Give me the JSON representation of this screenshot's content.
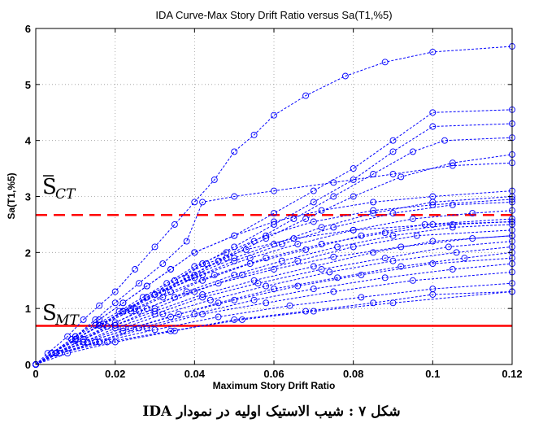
{
  "chart_data": {
    "type": "line",
    "title": "IDA Curve-Max Story Drift Ratio versus Sa(T1,%5)",
    "xlabel": "Maximum Story Drift Ratio",
    "ylabel": "Sa(T1,%5)",
    "xlim": [
      0,
      0.12
    ],
    "ylim": [
      0,
      6
    ],
    "xticks": [
      "0",
      "0.02",
      "0.04",
      "0.06",
      "0.08",
      "0.1",
      "0.12"
    ],
    "yticks": [
      "0",
      "1",
      "2",
      "3",
      "4",
      "5",
      "6"
    ],
    "grid": true,
    "series_color": "#0000ff",
    "series": [
      {
        "x": [
          0,
          0.003,
          0.008,
          0.012,
          0.016,
          0.02,
          0.025,
          0.03,
          0.035,
          0.04,
          0.045,
          0.05,
          0.055,
          0.06,
          0.068,
          0.078,
          0.088,
          0.1,
          0.12
        ],
        "y": [
          0,
          0.2,
          0.5,
          0.8,
          1.05,
          1.3,
          1.7,
          2.1,
          2.5,
          2.9,
          3.3,
          3.8,
          4.1,
          4.45,
          4.8,
          5.15,
          5.4,
          5.58,
          5.68
        ]
      },
      {
        "x": [
          0,
          0.004,
          0.01,
          0.016,
          0.022,
          0.028,
          0.034,
          0.04,
          0.05,
          0.06,
          0.07,
          0.08,
          0.09,
          0.1,
          0.12
        ],
        "y": [
          0,
          0.2,
          0.5,
          0.8,
          1.1,
          1.4,
          1.7,
          2.0,
          2.3,
          2.7,
          3.1,
          3.5,
          4.0,
          4.5,
          4.55
        ]
      },
      {
        "x": [
          0,
          0.004,
          0.01,
          0.016,
          0.022,
          0.028,
          0.035,
          0.042,
          0.05,
          0.06,
          0.07,
          0.08,
          0.09,
          0.1,
          0.12
        ],
        "y": [
          0,
          0.2,
          0.45,
          0.7,
          0.95,
          1.2,
          1.5,
          1.8,
          2.1,
          2.5,
          2.9,
          3.3,
          3.8,
          4.25,
          4.3
        ]
      },
      {
        "x": [
          0,
          0.004,
          0.01,
          0.016,
          0.022,
          0.03,
          0.038,
          0.046,
          0.055,
          0.065,
          0.075,
          0.085,
          0.095,
          0.103,
          0.12
        ],
        "y": [
          0,
          0.2,
          0.45,
          0.7,
          0.95,
          1.25,
          1.55,
          1.85,
          2.2,
          2.6,
          3.0,
          3.4,
          3.8,
          4.0,
          4.05
        ]
      },
      {
        "x": [
          0,
          0.004,
          0.01,
          0.015,
          0.02,
          0.026,
          0.032,
          0.038,
          0.042,
          0.05,
          0.06,
          0.075,
          0.09,
          0.105,
          0.12
        ],
        "y": [
          0,
          0.2,
          0.5,
          0.8,
          1.1,
          1.45,
          1.8,
          2.2,
          2.9,
          3.0,
          3.1,
          3.25,
          3.4,
          3.55,
          3.6
        ]
      },
      {
        "x": [
          0,
          0.004,
          0.01,
          0.016,
          0.022,
          0.03,
          0.038,
          0.048,
          0.058,
          0.068,
          0.08,
          0.092,
          0.105,
          0.12
        ],
        "y": [
          0,
          0.2,
          0.45,
          0.7,
          0.95,
          1.25,
          1.55,
          1.9,
          2.25,
          2.6,
          3.0,
          3.35,
          3.6,
          3.75
        ]
      },
      {
        "x": [
          0,
          0.004,
          0.01,
          0.016,
          0.022,
          0.028,
          0.034,
          0.04,
          0.05,
          0.06,
          0.072,
          0.085,
          0.1,
          0.12
        ],
        "y": [
          0,
          0.2,
          0.5,
          0.8,
          1.1,
          1.4,
          1.7,
          2.0,
          2.3,
          2.55,
          2.75,
          2.9,
          3.0,
          3.1
        ]
      },
      {
        "x": [
          0,
          0.004,
          0.01,
          0.016,
          0.022,
          0.03,
          0.04,
          0.05,
          0.06,
          0.072,
          0.085,
          0.1,
          0.12
        ],
        "y": [
          0,
          0.2,
          0.45,
          0.7,
          0.95,
          1.25,
          1.6,
          1.9,
          2.15,
          2.45,
          2.7,
          2.9,
          3.0
        ]
      },
      {
        "x": [
          0,
          0.004,
          0.01,
          0.016,
          0.022,
          0.03,
          0.04,
          0.05,
          0.062,
          0.075,
          0.09,
          0.105,
          0.12
        ],
        "y": [
          0,
          0.2,
          0.45,
          0.7,
          0.95,
          1.25,
          1.55,
          1.85,
          2.15,
          2.45,
          2.7,
          2.85,
          2.9
        ]
      },
      {
        "x": [
          0,
          0.004,
          0.01,
          0.016,
          0.024,
          0.032,
          0.042,
          0.054,
          0.066,
          0.08,
          0.095,
          0.11,
          0.12
        ],
        "y": [
          0,
          0.2,
          0.45,
          0.7,
          1.0,
          1.3,
          1.6,
          1.9,
          2.15,
          2.4,
          2.6,
          2.7,
          2.75
        ]
      },
      {
        "x": [
          0,
          0.004,
          0.01,
          0.016,
          0.024,
          0.032,
          0.042,
          0.054,
          0.068,
          0.082,
          0.098,
          0.12
        ],
        "y": [
          0,
          0.2,
          0.45,
          0.7,
          0.95,
          1.2,
          1.5,
          1.8,
          2.05,
          2.3,
          2.5,
          2.6
        ]
      },
      {
        "x": [
          0,
          0.005,
          0.012,
          0.02,
          0.028,
          0.038,
          0.05,
          0.062,
          0.076,
          0.09,
          0.105,
          0.12
        ],
        "y": [
          0,
          0.2,
          0.45,
          0.75,
          1.0,
          1.3,
          1.6,
          1.85,
          2.1,
          2.3,
          2.45,
          2.5
        ]
      },
      {
        "x": [
          0,
          0.005,
          0.012,
          0.02,
          0.03,
          0.04,
          0.052,
          0.066,
          0.08,
          0.096,
          0.12
        ],
        "y": [
          0,
          0.2,
          0.45,
          0.7,
          1.0,
          1.3,
          1.6,
          1.85,
          2.1,
          2.3,
          2.4
        ]
      },
      {
        "x": [
          0,
          0.005,
          0.012,
          0.02,
          0.03,
          0.042,
          0.055,
          0.07,
          0.085,
          0.1,
          0.12
        ],
        "y": [
          0,
          0.2,
          0.45,
          0.7,
          0.95,
          1.25,
          1.5,
          1.75,
          2.0,
          2.2,
          2.3
        ]
      },
      {
        "x": [
          0,
          0.005,
          0.012,
          0.02,
          0.03,
          0.042,
          0.056,
          0.072,
          0.088,
          0.104,
          0.12
        ],
        "y": [
          0,
          0.2,
          0.4,
          0.65,
          0.9,
          1.2,
          1.45,
          1.7,
          1.9,
          2.1,
          2.2
        ]
      },
      {
        "x": [
          0,
          0.005,
          0.012,
          0.022,
          0.032,
          0.044,
          0.058,
          0.074,
          0.09,
          0.106,
          0.12
        ],
        "y": [
          0,
          0.2,
          0.4,
          0.65,
          0.9,
          1.15,
          1.4,
          1.65,
          1.85,
          2.0,
          2.1
        ]
      },
      {
        "x": [
          0,
          0.005,
          0.013,
          0.022,
          0.034,
          0.046,
          0.06,
          0.076,
          0.092,
          0.108,
          0.12
        ],
        "y": [
          0,
          0.2,
          0.4,
          0.6,
          0.85,
          1.1,
          1.35,
          1.55,
          1.75,
          1.9,
          2.0
        ]
      },
      {
        "x": [
          0,
          0.005,
          0.013,
          0.024,
          0.036,
          0.05,
          0.066,
          0.082,
          0.1,
          0.12
        ],
        "y": [
          0,
          0.2,
          0.4,
          0.65,
          0.9,
          1.15,
          1.4,
          1.6,
          1.8,
          1.9
        ]
      },
      {
        "x": [
          0,
          0.006,
          0.015,
          0.026,
          0.04,
          0.055,
          0.07,
          0.088,
          0.105,
          0.12
        ],
        "y": [
          0,
          0.2,
          0.4,
          0.65,
          0.9,
          1.15,
          1.35,
          1.55,
          1.7,
          1.8
        ]
      },
      {
        "x": [
          0,
          0.006,
          0.015,
          0.028,
          0.042,
          0.058,
          0.075,
          0.095,
          0.12
        ],
        "y": [
          0,
          0.2,
          0.4,
          0.65,
          0.9,
          1.1,
          1.3,
          1.5,
          1.65
        ]
      },
      {
        "x": [
          0,
          0.006,
          0.016,
          0.03,
          0.046,
          0.064,
          0.082,
          0.1,
          0.12
        ],
        "y": [
          0,
          0.2,
          0.4,
          0.62,
          0.85,
          1.05,
          1.2,
          1.35,
          1.45
        ]
      },
      {
        "x": [
          0,
          0.006,
          0.018,
          0.034,
          0.052,
          0.07,
          0.09,
          0.12
        ],
        "y": [
          0,
          0.2,
          0.4,
          0.6,
          0.8,
          0.95,
          1.1,
          1.3
        ]
      },
      {
        "x": [
          0,
          0.008,
          0.02,
          0.035,
          0.05,
          0.068,
          0.085,
          0.1,
          0.12
        ],
        "y": [
          0,
          0.2,
          0.4,
          0.6,
          0.8,
          0.95,
          1.1,
          1.25,
          1.3
        ]
      },
      {
        "x": [
          0,
          0.004,
          0.01,
          0.016,
          0.022,
          0.028,
          0.035,
          0.043,
          0.053,
          0.065,
          0.08,
          0.1,
          0.12
        ],
        "y": [
          0,
          0.2,
          0.45,
          0.7,
          0.95,
          1.2,
          1.5,
          1.8,
          2.05,
          2.25,
          2.4,
          2.5,
          2.55
        ]
      },
      {
        "x": [
          0,
          0.004,
          0.009,
          0.015,
          0.021,
          0.027,
          0.033,
          0.04,
          0.048,
          0.058,
          0.07,
          0.085,
          0.1,
          0.12
        ],
        "y": [
          0,
          0.2,
          0.45,
          0.7,
          0.95,
          1.2,
          1.45,
          1.75,
          2.0,
          2.3,
          2.55,
          2.75,
          2.85,
          2.95
        ]
      },
      {
        "x": [
          0,
          0.004,
          0.01,
          0.017,
          0.025,
          0.034,
          0.045,
          0.058,
          0.072,
          0.088,
          0.105,
          0.12
        ],
        "y": [
          0,
          0.2,
          0.45,
          0.72,
          1.0,
          1.3,
          1.6,
          1.9,
          2.15,
          2.35,
          2.5,
          2.55
        ]
      },
      {
        "x": [
          0,
          0.004,
          0.01,
          0.018,
          0.026,
          0.035,
          0.046,
          0.06,
          0.075,
          0.092,
          0.11,
          0.12
        ],
        "y": [
          0,
          0.2,
          0.42,
          0.68,
          0.95,
          1.2,
          1.45,
          1.7,
          1.92,
          2.1,
          2.25,
          2.3
        ]
      }
    ],
    "reference_lines": [
      {
        "y": 2.67,
        "color": "#ff0000",
        "style": "dashed"
      },
      {
        "y": 0.69,
        "color": "#ff0000",
        "style": "solid"
      }
    ],
    "annotations": [
      {
        "base": "S",
        "bar": true,
        "sub": "CT",
        "y": 3.05
      },
      {
        "base": "S",
        "bar": false,
        "sub": "MT",
        "y": 0.8
      }
    ]
  },
  "caption": "شکل ۷ : شیب الاستیک اولیه در نمودار IDA"
}
